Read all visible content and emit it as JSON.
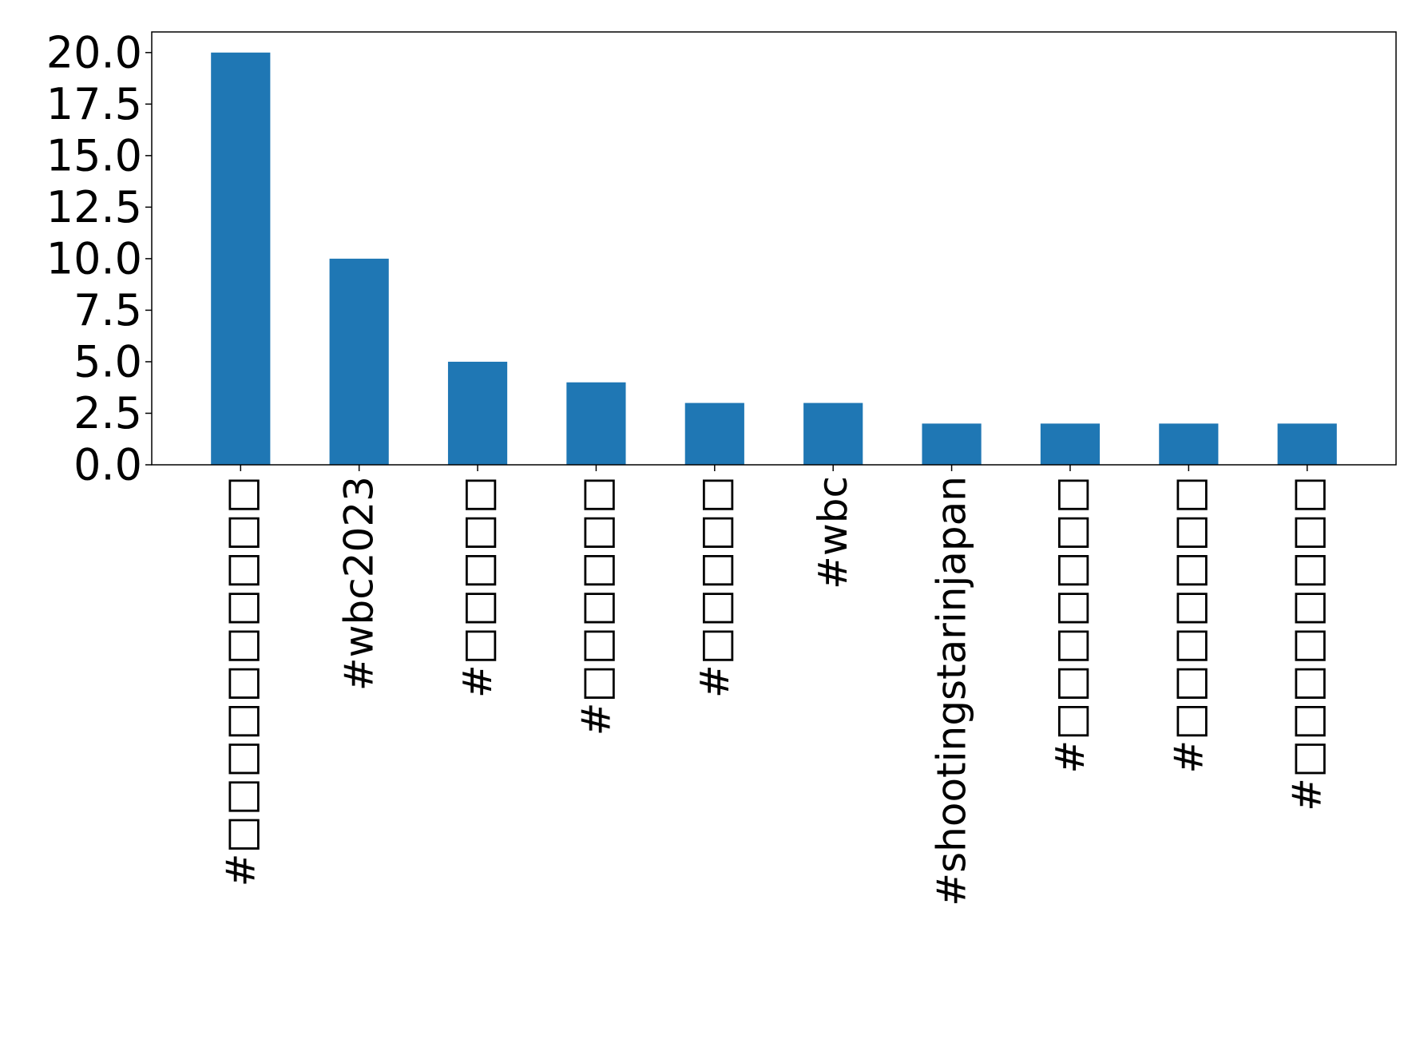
{
  "chart_data": {
    "type": "bar",
    "categories": [
      "#□□□□□□□□□□",
      "#wbc2023",
      "#□□□□□",
      "#□□□□□□",
      "#□□□□□",
      "#wbc",
      "#shootingstarinjapan",
      "#□□□□□□□",
      "#□□□□□□□",
      "#□□□□□□□□"
    ],
    "values": [
      20,
      10,
      5,
      4,
      3,
      3,
      2,
      2,
      2,
      2
    ],
    "title": "",
    "xlabel": "",
    "ylabel": "",
    "ylim": [
      0,
      21
    ],
    "yticks": [
      "0.0",
      "2.5",
      "5.0",
      "7.5",
      "10.0",
      "12.5",
      "15.0",
      "17.5",
      "20.0"
    ],
    "grid": false,
    "bar_color": "#1f77b4"
  }
}
